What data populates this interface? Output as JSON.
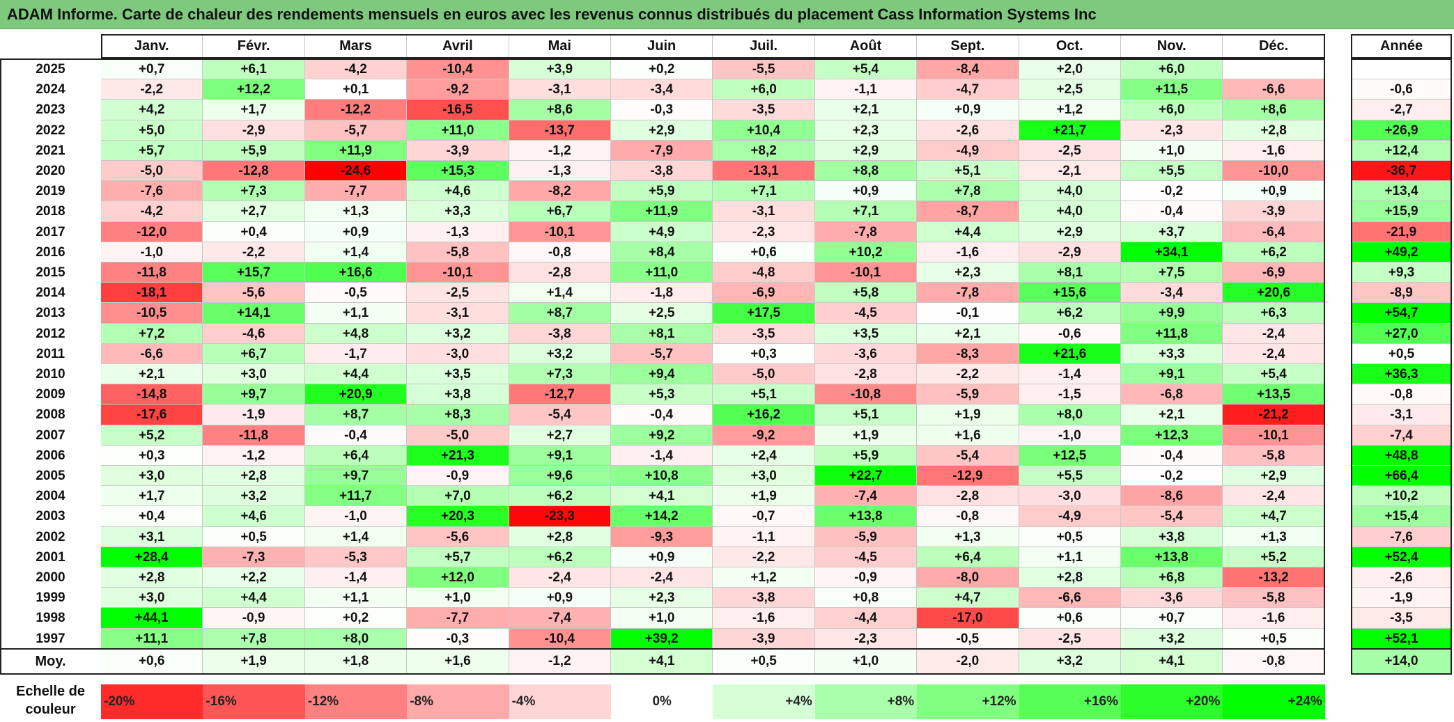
{
  "title": "ADAM Informe. Carte de chaleur des rendements mensuels en euros avec les revenus connus distribués du placement Cass Information Systems Inc",
  "chart_data": {
    "type": "heatmap",
    "title": "ADAM Informe. Carte de chaleur des rendements mensuels en euros avec les revenus connus distribués du placement Cass Information Systems Inc",
    "months": [
      "Janv.",
      "Févr.",
      "Mars",
      "Avril",
      "Mai",
      "Juin",
      "Juil.",
      "Août",
      "Sept.",
      "Oct.",
      "Nov.",
      "Déc."
    ],
    "year_header": "Année",
    "rows": [
      {
        "year": "2025",
        "months": [
          "+0,7",
          "+6,1",
          "-4,2",
          "-10,4",
          "+3,9",
          "+0,2",
          "-5,5",
          "+5,4",
          "-8,4",
          "+2,0",
          "+6,0",
          ""
        ],
        "annual": ""
      },
      {
        "year": "2024",
        "months": [
          "-2,2",
          "+12,2",
          "+0,1",
          "-9,2",
          "-3,1",
          "-3,4",
          "+6,0",
          "-1,1",
          "-4,7",
          "+2,5",
          "+11,5",
          "-6,6"
        ],
        "annual": "-0,6"
      },
      {
        "year": "2023",
        "months": [
          "+4,2",
          "+1,7",
          "-12,2",
          "-16,5",
          "+8,6",
          "-0,3",
          "-3,5",
          "+2,1",
          "+0,9",
          "+1,2",
          "+6,0",
          "+8,6"
        ],
        "annual": "-2,7"
      },
      {
        "year": "2022",
        "months": [
          "+5,0",
          "-2,9",
          "-5,7",
          "+11,0",
          "-13,7",
          "+2,9",
          "+10,4",
          "+2,3",
          "-2,6",
          "+21,7",
          "-2,3",
          "+2,8"
        ],
        "annual": "+26,9"
      },
      {
        "year": "2021",
        "months": [
          "+5,7",
          "+5,9",
          "+11,9",
          "-3,9",
          "-1,2",
          "-7,9",
          "+8,2",
          "+2,9",
          "-4,9",
          "-2,5",
          "+1,0",
          "-1,6"
        ],
        "annual": "+12,4"
      },
      {
        "year": "2020",
        "months": [
          "-5,0",
          "-12,8",
          "-24,6",
          "+15,3",
          "-1,3",
          "-3,8",
          "-13,1",
          "+8,8",
          "+5,1",
          "-2,1",
          "+5,5",
          "-10,0"
        ],
        "annual": "-36,7"
      },
      {
        "year": "2019",
        "months": [
          "-7,6",
          "+7,3",
          "-7,7",
          "+4,6",
          "-8,2",
          "+5,9",
          "+7,1",
          "+0,9",
          "+7,8",
          "+4,0",
          "-0,2",
          "+0,9"
        ],
        "annual": "+13,4"
      },
      {
        "year": "2018",
        "months": [
          "-4,2",
          "+2,7",
          "+1,3",
          "+3,3",
          "+6,7",
          "+11,9",
          "-3,1",
          "+7,1",
          "-8,7",
          "+4,0",
          "-0,4",
          "-3,9"
        ],
        "annual": "+15,9"
      },
      {
        "year": "2017",
        "months": [
          "-12,0",
          "+0,4",
          "+0,9",
          "-1,3",
          "-10,1",
          "+4,9",
          "-2,3",
          "-7,8",
          "+4,4",
          "+2,9",
          "+3,7",
          "-6,4"
        ],
        "annual": "-21,9"
      },
      {
        "year": "2016",
        "months": [
          "-1,0",
          "-2,2",
          "+1,4",
          "-5,8",
          "-0,8",
          "+8,4",
          "+0,6",
          "+10,2",
          "-1,6",
          "-2,9",
          "+34,1",
          "+6,2"
        ],
        "annual": "+49,2"
      },
      {
        "year": "2015",
        "months": [
          "-11,8",
          "+15,7",
          "+16,6",
          "-10,1",
          "-2,8",
          "+11,0",
          "-4,8",
          "-10,1",
          "+2,3",
          "+8,1",
          "+7,5",
          "-6,9"
        ],
        "annual": "+9,3"
      },
      {
        "year": "2014",
        "months": [
          "-18,1",
          "-5,6",
          "-0,5",
          "-2,5",
          "+1,4",
          "-1,8",
          "-6,9",
          "+5,8",
          "-7,8",
          "+15,6",
          "-3,4",
          "+20,6"
        ],
        "annual": "-8,9"
      },
      {
        "year": "2013",
        "months": [
          "-10,5",
          "+14,1",
          "+1,1",
          "-3,1",
          "+8,7",
          "+2,5",
          "+17,5",
          "-4,5",
          "-0,1",
          "+6,2",
          "+9,9",
          "+6,3"
        ],
        "annual": "+54,7"
      },
      {
        "year": "2012",
        "months": [
          "+7,2",
          "-4,6",
          "+4,8",
          "+3,2",
          "-3,8",
          "+8,1",
          "-3,5",
          "+3,5",
          "+2,1",
          "-0,6",
          "+11,8",
          "-2,4"
        ],
        "annual": "+27,0"
      },
      {
        "year": "2011",
        "months": [
          "-6,6",
          "+6,7",
          "-1,7",
          "-3,0",
          "+3,2",
          "-5,7",
          "+0,3",
          "-3,6",
          "-8,3",
          "+21,6",
          "+3,3",
          "-2,4"
        ],
        "annual": "+0,5"
      },
      {
        "year": "2010",
        "months": [
          "+2,1",
          "+3,0",
          "+4,4",
          "+3,5",
          "+7,3",
          "+9,4",
          "-5,0",
          "-2,8",
          "-2,2",
          "-1,4",
          "+9,1",
          "+5,4"
        ],
        "annual": "+36,3"
      },
      {
        "year": "2009",
        "months": [
          "-14,8",
          "+9,7",
          "+20,9",
          "+3,8",
          "-12,7",
          "+5,3",
          "+5,1",
          "-10,8",
          "-5,9",
          "-1,5",
          "-6,8",
          "+13,5"
        ],
        "annual": "-0,8"
      },
      {
        "year": "2008",
        "months": [
          "-17,6",
          "-1,9",
          "+8,7",
          "+8,3",
          "-5,4",
          "-0,4",
          "+16,2",
          "+5,1",
          "+1,9",
          "+8,0",
          "+2,1",
          "-21,2"
        ],
        "annual": "-3,1"
      },
      {
        "year": "2007",
        "months": [
          "+5,2",
          "-11,8",
          "-0,4",
          "-5,0",
          "+2,7",
          "+9,2",
          "-9,2",
          "+1,9",
          "+1,6",
          "-1,0",
          "+12,3",
          "-10,1"
        ],
        "annual": "-7,4"
      },
      {
        "year": "2006",
        "months": [
          "+0,3",
          "-1,2",
          "+6,4",
          "+21,3",
          "+9,1",
          "-1,4",
          "+2,4",
          "+5,9",
          "-5,4",
          "+12,5",
          "-0,4",
          "-5,8"
        ],
        "annual": "+48,8"
      },
      {
        "year": "2005",
        "months": [
          "+3,0",
          "+2,8",
          "+9,7",
          "-0,9",
          "+9,6",
          "+10,8",
          "+3,0",
          "+22,7",
          "-12,9",
          "+5,5",
          "-0,2",
          "+2,9"
        ],
        "annual": "+66,4"
      },
      {
        "year": "2004",
        "months": [
          "+1,7",
          "+3,2",
          "+11,7",
          "+7,0",
          "+6,2",
          "+4,1",
          "+1,9",
          "-7,4",
          "-2,8",
          "-3,0",
          "-8,6",
          "-2,4"
        ],
        "annual": "+10,2"
      },
      {
        "year": "2003",
        "months": [
          "+0,4",
          "+4,6",
          "-1,0",
          "+20,3",
          "-23,3",
          "+14,2",
          "-0,7",
          "+13,8",
          "-0,8",
          "-4,9",
          "-5,4",
          "+4,7"
        ],
        "annual": "+15,4"
      },
      {
        "year": "2002",
        "months": [
          "+3,1",
          "+0,5",
          "+1,4",
          "-5,6",
          "+2,8",
          "-9,3",
          "-1,1",
          "-5,9",
          "+1,3",
          "+0,5",
          "+3,8",
          "+1,3"
        ],
        "annual": "-7,6"
      },
      {
        "year": "2001",
        "months": [
          "+28,4",
          "-7,3",
          "-5,3",
          "+5,7",
          "+6,2",
          "+0,9",
          "-2,2",
          "-4,5",
          "+6,4",
          "+1,1",
          "+13,8",
          "+5,2"
        ],
        "annual": "+52,4"
      },
      {
        "year": "2000",
        "months": [
          "+2,8",
          "+2,2",
          "-1,4",
          "+12,0",
          "-2,4",
          "-2,4",
          "+1,2",
          "-0,9",
          "-8,0",
          "+2,8",
          "+6,8",
          "-13,2"
        ],
        "annual": "-2,6"
      },
      {
        "year": "1999",
        "months": [
          "+3,0",
          "+4,4",
          "+1,1",
          "+1,0",
          "+0,9",
          "+2,3",
          "-3,8",
          "+0,8",
          "+4,7",
          "-6,6",
          "-3,6",
          "-5,8"
        ],
        "annual": "-1,9"
      },
      {
        "year": "1998",
        "months": [
          "+44,1",
          "-0,9",
          "+0,2",
          "-7,7",
          "-7,4",
          "+1,0",
          "-1,6",
          "-4,4",
          "-17,0",
          "+0,6",
          "+0,7",
          "-1,6"
        ],
        "annual": "-3,5"
      },
      {
        "year": "1997",
        "months": [
          "+11,1",
          "+7,8",
          "+8,0",
          "-0,3",
          "-10,4",
          "+39,2",
          "-3,9",
          "-2,3",
          "-0,5",
          "-2,5",
          "+3,2",
          "+0,5"
        ],
        "annual": "+52,1"
      }
    ],
    "average": {
      "label": "Moy.",
      "months": [
        "+0,6",
        "+1,9",
        "+1,8",
        "+1,6",
        "-1,2",
        "+4,1",
        "+0,5",
        "+1,0",
        "-2,0",
        "+3,2",
        "+4,1",
        "-0,8"
      ],
      "annual": "+14,0"
    },
    "scale": {
      "label_line1": "Echelle de",
      "label_line2": "couleur",
      "stops": [
        {
          "label": "-20%",
          "value": -20
        },
        {
          "label": "-16%",
          "value": -16
        },
        {
          "label": "-12%",
          "value": -12
        },
        {
          "label": "-8%",
          "value": -8
        },
        {
          "label": "-4%",
          "value": -4
        },
        {
          "label": "0%",
          "value": 0
        },
        {
          "label": "+4%",
          "value": 4
        },
        {
          "label": "+8%",
          "value": 8
        },
        {
          "label": "+12%",
          "value": 12
        },
        {
          "label": "+16%",
          "value": 16
        },
        {
          "label": "+20%",
          "value": 20
        },
        {
          "label": "+24%",
          "value": 24
        }
      ]
    },
    "colors": {
      "negative_max": "#ff0000",
      "neutral": "#ffffff",
      "positive_max": "#00ff00"
    }
  }
}
